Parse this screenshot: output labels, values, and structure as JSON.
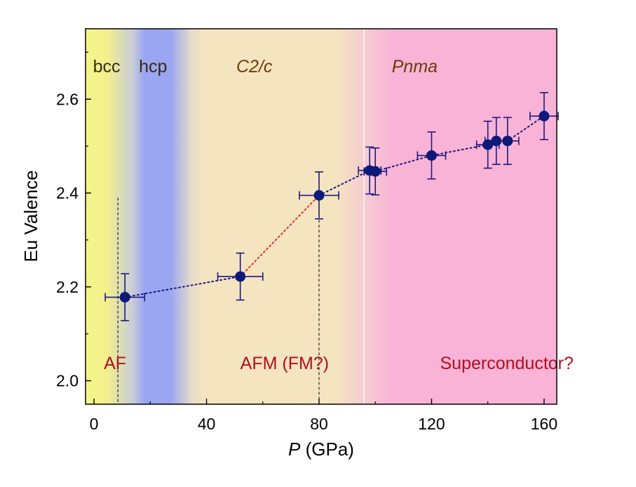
{
  "chart_data": {
    "type": "scatter",
    "xlabel_italic": "P",
    "xlabel_rest": " (GPa)",
    "ylabel": "Eu Valence",
    "xlim": [
      -3,
      164.5
    ],
    "ylim": [
      1.95,
      2.75
    ],
    "xticks": [
      0,
      40,
      80,
      120,
      160
    ],
    "xtick_labels": [
      "0",
      "40",
      "80",
      "120",
      "160"
    ],
    "yticks": [
      2.0,
      2.2,
      2.4,
      2.6
    ],
    "ytick_labels": [
      "2.0",
      "2.2",
      "2.4",
      "2.6"
    ],
    "grid": false,
    "points": [
      {
        "x": 11,
        "y": 2.178,
        "xerr": 7,
        "yerr": 0.05
      },
      {
        "x": 52,
        "y": 2.222,
        "xerr": 8,
        "yerr": 0.05
      },
      {
        "x": 80,
        "y": 2.395,
        "xerr": 7,
        "yerr": 0.05
      },
      {
        "x": 98,
        "y": 2.448,
        "xerr": 4,
        "yerr": 0.05
      },
      {
        "x": 100,
        "y": 2.446,
        "xerr": 4,
        "yerr": 0.05
      },
      {
        "x": 120,
        "y": 2.48,
        "xerr": 5,
        "yerr": 0.05
      },
      {
        "x": 140,
        "y": 2.503,
        "xerr": 4,
        "yerr": 0.05
      },
      {
        "x": 143,
        "y": 2.511,
        "xerr": 4,
        "yerr": 0.05
      },
      {
        "x": 147,
        "y": 2.511,
        "xerr": 4,
        "yerr": 0.05
      },
      {
        "x": 160,
        "y": 2.564,
        "xerr": 5,
        "yerr": 0.05
      }
    ],
    "trend_segments": [
      {
        "from": 0,
        "to": 1,
        "style": "dotted",
        "color": "#1a1a80"
      },
      {
        "from": 1,
        "to": 2,
        "style": "dotted",
        "color": "#e03030"
      },
      {
        "from": 2,
        "to": 9,
        "style": "dotted",
        "color": "#1a1a80"
      }
    ],
    "boundaries": [
      {
        "x": 8.5,
        "y_top": 2.39,
        "style": "dashed"
      },
      {
        "x": 80,
        "y_top": 2.395,
        "style": "dashed"
      },
      {
        "x": 96,
        "style": "solid-white"
      }
    ],
    "phases": [
      {
        "label": "bcc",
        "italic": false,
        "x": 4.5
      },
      {
        "label": "hcp",
        "italic": false,
        "x": 21
      },
      {
        "label": "C2/c",
        "italic": true,
        "x": 57
      },
      {
        "label": "Pnma",
        "italic": true,
        "x": 114
      }
    ],
    "regions": [
      {
        "label": "AF",
        "x": 3.5
      },
      {
        "label": "AFM (FM?)",
        "x": 52
      },
      {
        "label": "Superconductor?",
        "x": 123
      }
    ],
    "colors": {
      "marker": "#0d1a7a",
      "errorbar": "#1a1a80",
      "phase_label": "#6b3a0a",
      "region_label": "#b01020",
      "bg_yellow": "#f5f38a",
      "bg_blue": "#9aa6f2",
      "bg_beige": "#f5e4c0",
      "bg_pink": "#f9b3d6"
    }
  }
}
